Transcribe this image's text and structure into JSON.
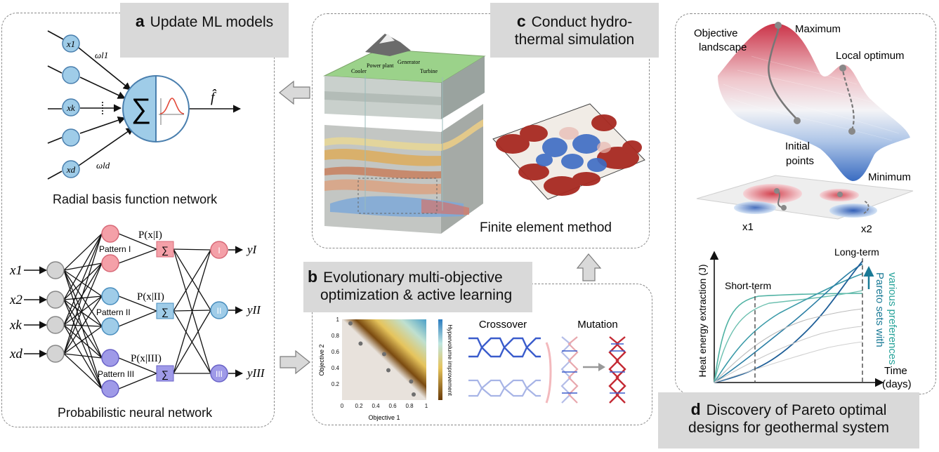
{
  "panels": {
    "a": {
      "letter": "a",
      "title": "Update ML models"
    },
    "b": {
      "letter": "b",
      "title_line1": "Evolutionary multi-objective",
      "title_line2": "optimization & active learning"
    },
    "c": {
      "letter": "c",
      "title_line1": "Conduct hydro-",
      "title_line2": "thermal simulation"
    },
    "d": {
      "letter": "d",
      "title_line1": "Discovery of Pareto optimal",
      "title_line2": "designs for geothermal system"
    }
  },
  "rbf": {
    "caption": "Radial basis function network",
    "inputs": [
      "x1",
      "xk",
      "xd"
    ],
    "weights": [
      "ωl1",
      "ωld"
    ],
    "sum_symbol": "∑",
    "output": "f̂"
  },
  "pnn": {
    "caption": "Probabilistic neural network",
    "inputs": [
      "x1",
      "x2",
      "xk",
      "xd"
    ],
    "patterns": [
      "Pattern I",
      "Pattern II",
      "Pattern III"
    ],
    "probs": [
      "P(x|I)",
      "P(x|II)",
      "P(x|III)"
    ],
    "classes": [
      "I",
      "II",
      "III"
    ],
    "outputs": [
      "yI",
      "yII",
      "yIII"
    ],
    "colors": {
      "pink": "#f4a0a8",
      "blue": "#9fcce8",
      "purple": "#9f9ae8"
    }
  },
  "sim": {
    "caption": "Finite element method",
    "map_labels": [
      "Power plant",
      "Generator",
      "Cooler",
      "Turbine"
    ]
  },
  "opt": {
    "chart_data": {
      "type": "scatter",
      "xlabel": "Objective 1",
      "ylabel": "Objective 2",
      "colorbar_label": "Hypervolume improvement",
      "xlim": [
        0,
        1
      ],
      "ylim": [
        0,
        1
      ],
      "xticks": [
        "0",
        "0.2",
        "0.4",
        "0.6",
        "0.8",
        "1"
      ],
      "yticks": [
        "0",
        "0.2",
        "0.4",
        "0.6",
        "0.8",
        "1"
      ],
      "points": [
        [
          0.1,
          0.95
        ],
        [
          0.22,
          0.7
        ],
        [
          0.5,
          0.57
        ],
        [
          0.55,
          0.37
        ],
        [
          0.82,
          0.23
        ],
        [
          0.85,
          0.07
        ]
      ]
    },
    "crossover_label": "Crossover",
    "mutation_label": "Mutation"
  },
  "landscape": {
    "objective_label_line1": "Objective",
    "objective_label_line2": "landscape",
    "maximum_label": "Maximum",
    "local_optimum_label": "Local optimum",
    "initial_label_line1": "Initial",
    "initial_label_line2": "points",
    "minimum_label": "Minimum",
    "x1_label": "x1",
    "x2_label": "x2"
  },
  "pareto": {
    "ylabel": "Heat energy extraction (J)",
    "xlabel_line1": "Time",
    "xlabel_line2": "(days)",
    "short_term": "Short-term",
    "long_term": "Long-term",
    "sets_line1": "Pareto sets with",
    "sets_line2": "various preferences"
  }
}
